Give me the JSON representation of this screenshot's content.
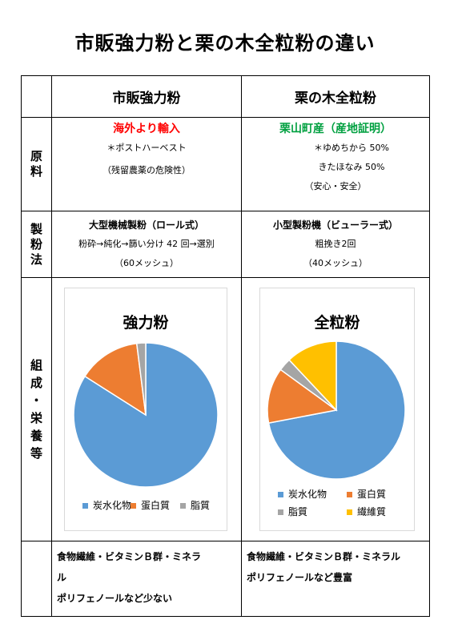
{
  "page": {
    "title": "市販強力粉と栗の木全粒粉の違い"
  },
  "columns": {
    "left": "市販強力粉",
    "right": "栗の木全粒粉"
  },
  "rows": {
    "material": {
      "label": [
        "原",
        "料"
      ]
    },
    "method": {
      "label": [
        "製",
        "粉",
        "法"
      ]
    },
    "composition": {
      "label": [
        "組",
        "成",
        "・",
        "栄",
        "養",
        "等"
      ]
    }
  },
  "material": {
    "left": {
      "headline": "海外より輸入",
      "line1": "＊ポストハーベスト",
      "line2": "（残留農薬の危険性）"
    },
    "right": {
      "headline": "栗山町産（産地証明）",
      "line1": "＊ゆめちから 50%",
      "line2": "きたほなみ 50%",
      "line3": "（安心・安全）"
    }
  },
  "method": {
    "left": {
      "headline": "大型機械製粉（ロール式）",
      "line1": "粉砕→純化→篩い分け 42 回→選別",
      "line2": "（60メッシュ）"
    },
    "right": {
      "headline": "小型製粉機（ビューラー式）",
      "line1": "粗挽き2回",
      "line2": "（40メッシュ）"
    }
  },
  "chart_data": [
    {
      "type": "pie",
      "title": "強力粉",
      "categories": [
        "炭水化物",
        "蛋白質",
        "脂質"
      ],
      "values": [
        84,
        14,
        2
      ],
      "colors": [
        "#5b9bd5",
        "#ed7d31",
        "#a5a5a5"
      ],
      "legend": "bottom"
    },
    {
      "type": "pie",
      "title": "全粒粉",
      "categories": [
        "炭水化物",
        "蛋白質",
        "脂質",
        "繊維質"
      ],
      "values": [
        72,
        13,
        3,
        12
      ],
      "colors": [
        "#5b9bd5",
        "#ed7d31",
        "#a5a5a5",
        "#ffc000"
      ],
      "legend": "bottom"
    }
  ],
  "summary": {
    "left": {
      "line1": "食物繊維・ビタミンＢ群・ミネラ",
      "line2": "ル",
      "line3": "ポリフェノールなど少ない"
    },
    "right": {
      "line1": "食物繊維・ビタミンＢ群・ミネラル",
      "line2": "ポリフェノールなど豊富"
    }
  }
}
